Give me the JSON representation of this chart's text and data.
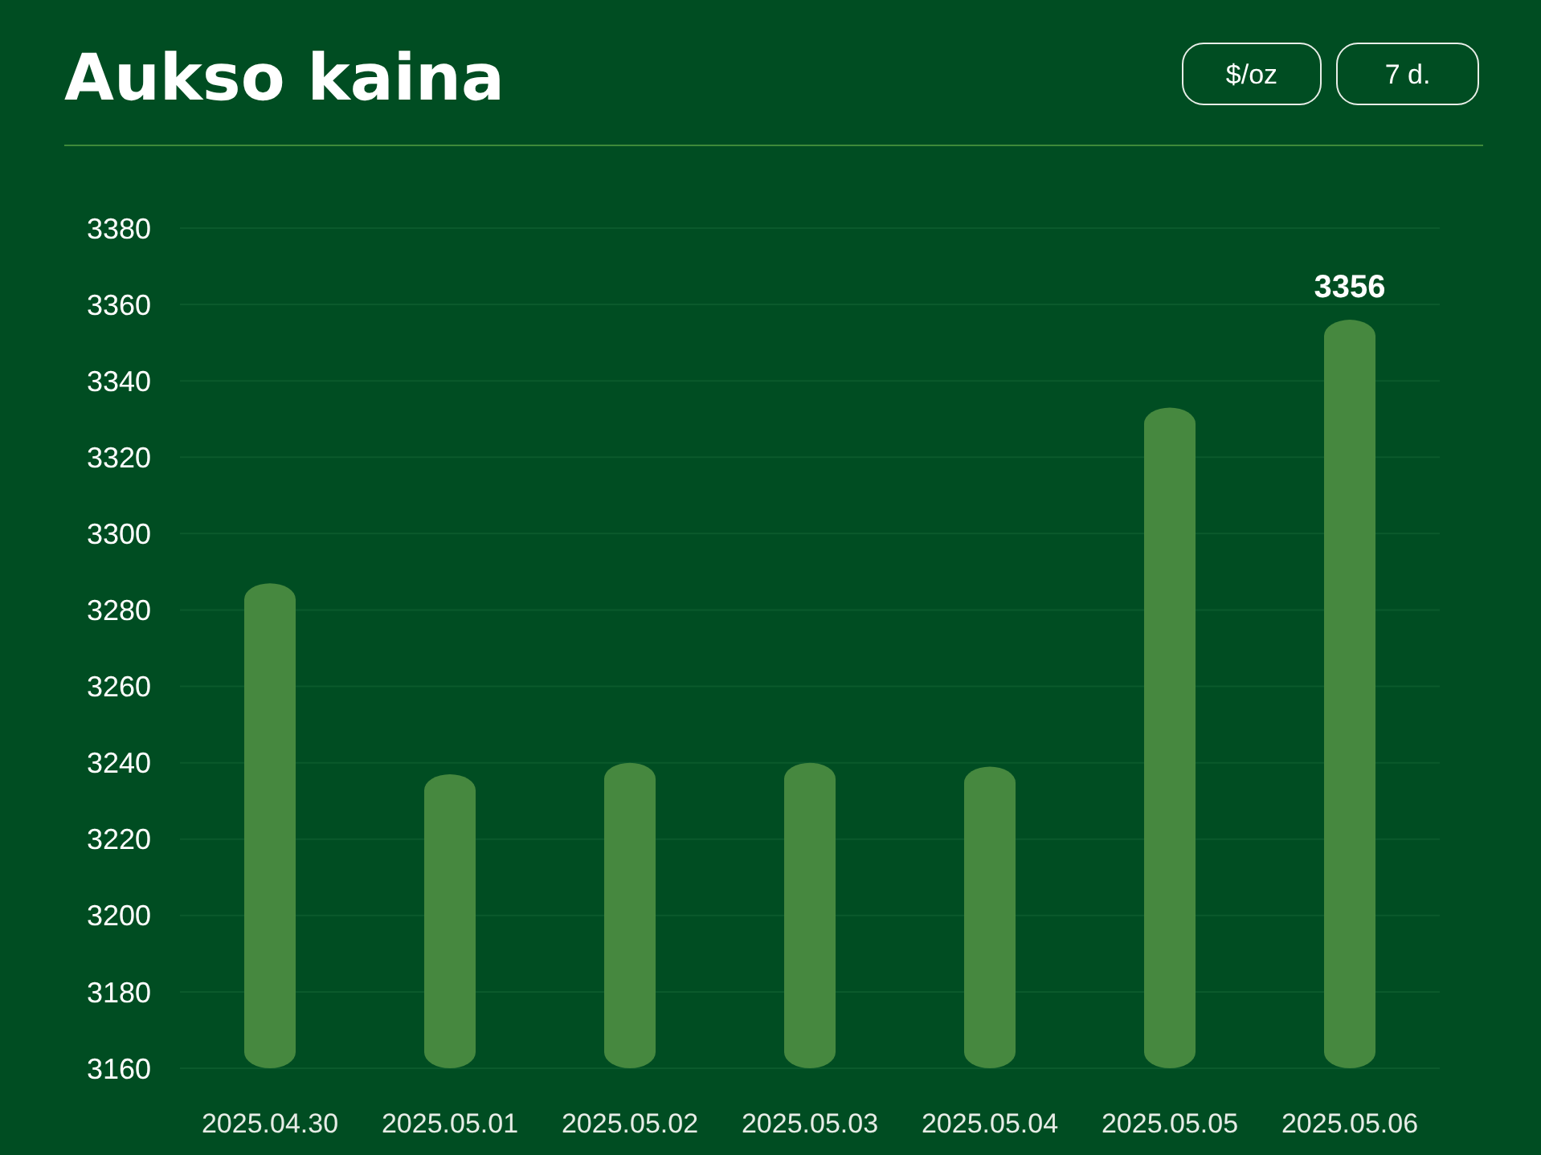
{
  "chart_data": {
    "type": "bar",
    "title": "Aukso kaina",
    "annotations": [
      "$/oz",
      "7 d."
    ],
    "categories": [
      "2025.04.30",
      "2025.05.01",
      "2025.05.02",
      "2025.05.03",
      "2025.05.04",
      "2025.05.05",
      "2025.05.06"
    ],
    "values": [
      3287,
      3237,
      3240,
      3240,
      3239,
      3333,
      3356
    ],
    "value_labels": [
      null,
      null,
      null,
      null,
      null,
      null,
      "3356"
    ],
    "color": "#46883f",
    "ylim": [
      3160,
      3380
    ],
    "yticks": [
      3160,
      3180,
      3200,
      3220,
      3240,
      3260,
      3280,
      3300,
      3320,
      3340,
      3360,
      3380
    ],
    "grid": "y"
  }
}
